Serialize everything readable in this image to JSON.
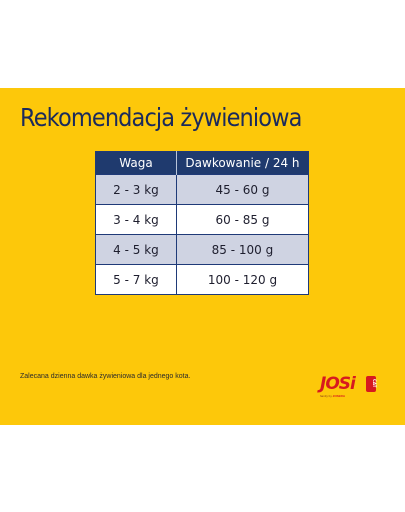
{
  "title": "Rekomendacja żywieniowa",
  "table": {
    "headers": [
      "Waga",
      "Dawkowanie / 24 h"
    ],
    "rows": [
      [
        "2 - 3 kg",
        "45 - 60 g"
      ],
      [
        "3 - 4 kg",
        "60 - 85 g"
      ],
      [
        "4 - 5 kg",
        "85 - 100 g"
      ],
      [
        "5 - 7 kg",
        "100 - 120 g"
      ]
    ]
  },
  "footnote": "Zalecana dzienna dawka żywieniowa dla jednego kota.",
  "logo": {
    "word": "JOSi",
    "badge": "CAT",
    "tagline_prefix": "family by ",
    "tagline_brand": "JOSERA"
  },
  "colors": {
    "background": "#fdc80a",
    "title": "#1b2a5c",
    "header": "#1f3a6e",
    "row_shade": "#cfd3e2",
    "logo": "#d7191f"
  }
}
